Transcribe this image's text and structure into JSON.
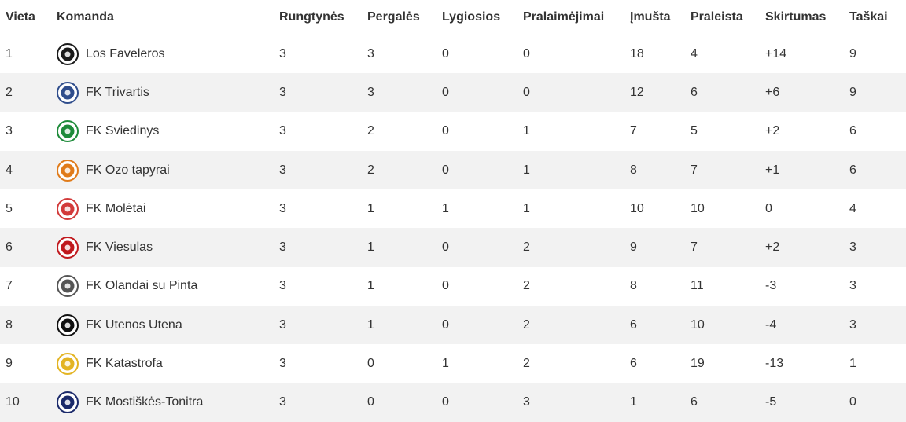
{
  "headers": {
    "place": "Vieta",
    "team": "Komanda",
    "played": "Rungtynės",
    "wins": "Pergalės",
    "draws": "Lygiosios",
    "losses": "Pralaimėjimai",
    "scored": "Įmušta",
    "conceded": "Praleista",
    "diff": "Skirtumas",
    "points": "Taškai"
  },
  "rows": [
    {
      "place": "1",
      "team": "Los Faveleros",
      "played": "3",
      "wins": "3",
      "draws": "0",
      "losses": "0",
      "scored": "18",
      "conceded": "4",
      "diff": "+14",
      "points": "9",
      "logo_icon": "los-faveleros-logo-icon",
      "logo_color": "#1a1a1a"
    },
    {
      "place": "2",
      "team": "FK Trivartis",
      "played": "3",
      "wins": "3",
      "draws": "0",
      "losses": "0",
      "scored": "12",
      "conceded": "6",
      "diff": "+6",
      "points": "9",
      "logo_icon": "fk-trivartis-logo-icon",
      "logo_color": "#2f4d8c"
    },
    {
      "place": "3",
      "team": "FK Sviedinys",
      "played": "3",
      "wins": "2",
      "draws": "0",
      "losses": "1",
      "scored": "7",
      "conceded": "5",
      "diff": "+2",
      "points": "6",
      "logo_icon": "fk-sviedinys-logo-icon",
      "logo_color": "#1e8b3a"
    },
    {
      "place": "4",
      "team": "FK Ozo tapyrai",
      "played": "3",
      "wins": "2",
      "draws": "0",
      "losses": "1",
      "scored": "8",
      "conceded": "7",
      "diff": "+1",
      "points": "6",
      "logo_icon": "fk-ozo-tapyrai-logo-icon",
      "logo_color": "#e07b1a"
    },
    {
      "place": "5",
      "team": "FK Molėtai",
      "played": "3",
      "wins": "1",
      "draws": "1",
      "losses": "1",
      "scored": "10",
      "conceded": "10",
      "diff": "0",
      "points": "4",
      "logo_icon": "fk-moletai-logo-icon",
      "logo_color": "#d23a3a"
    },
    {
      "place": "6",
      "team": "FK Viesulas",
      "played": "3",
      "wins": "1",
      "draws": "0",
      "losses": "2",
      "scored": "9",
      "conceded": "7",
      "diff": "+2",
      "points": "3",
      "logo_icon": "fk-viesulas-logo-icon",
      "logo_color": "#c0181d"
    },
    {
      "place": "7",
      "team": "FK Olandai su Pinta",
      "played": "3",
      "wins": "1",
      "draws": "0",
      "losses": "2",
      "scored": "8",
      "conceded": "11",
      "diff": "-3",
      "points": "3",
      "logo_icon": "fk-olandai-su-pinta-logo-icon",
      "logo_color": "#555555"
    },
    {
      "place": "8",
      "team": "FK Utenos Utena",
      "played": "3",
      "wins": "1",
      "draws": "0",
      "losses": "2",
      "scored": "6",
      "conceded": "10",
      "diff": "-4",
      "points": "3",
      "logo_icon": "fk-utenos-utena-logo-icon",
      "logo_color": "#111111"
    },
    {
      "place": "9",
      "team": "FK Katastrofa",
      "played": "3",
      "wins": "0",
      "draws": "1",
      "losses": "2",
      "scored": "6",
      "conceded": "19",
      "diff": "-13",
      "points": "1",
      "logo_icon": "fk-katastrofa-logo-icon",
      "logo_color": "#e3b423"
    },
    {
      "place": "10",
      "team": "FK Mostiškės-Tonitra",
      "played": "3",
      "wins": "0",
      "draws": "0",
      "losses": "3",
      "scored": "1",
      "conceded": "6",
      "diff": "-5",
      "points": "0",
      "logo_icon": "fk-mostiskes-tonitra-logo-icon",
      "logo_color": "#1b2a6b"
    }
  ]
}
